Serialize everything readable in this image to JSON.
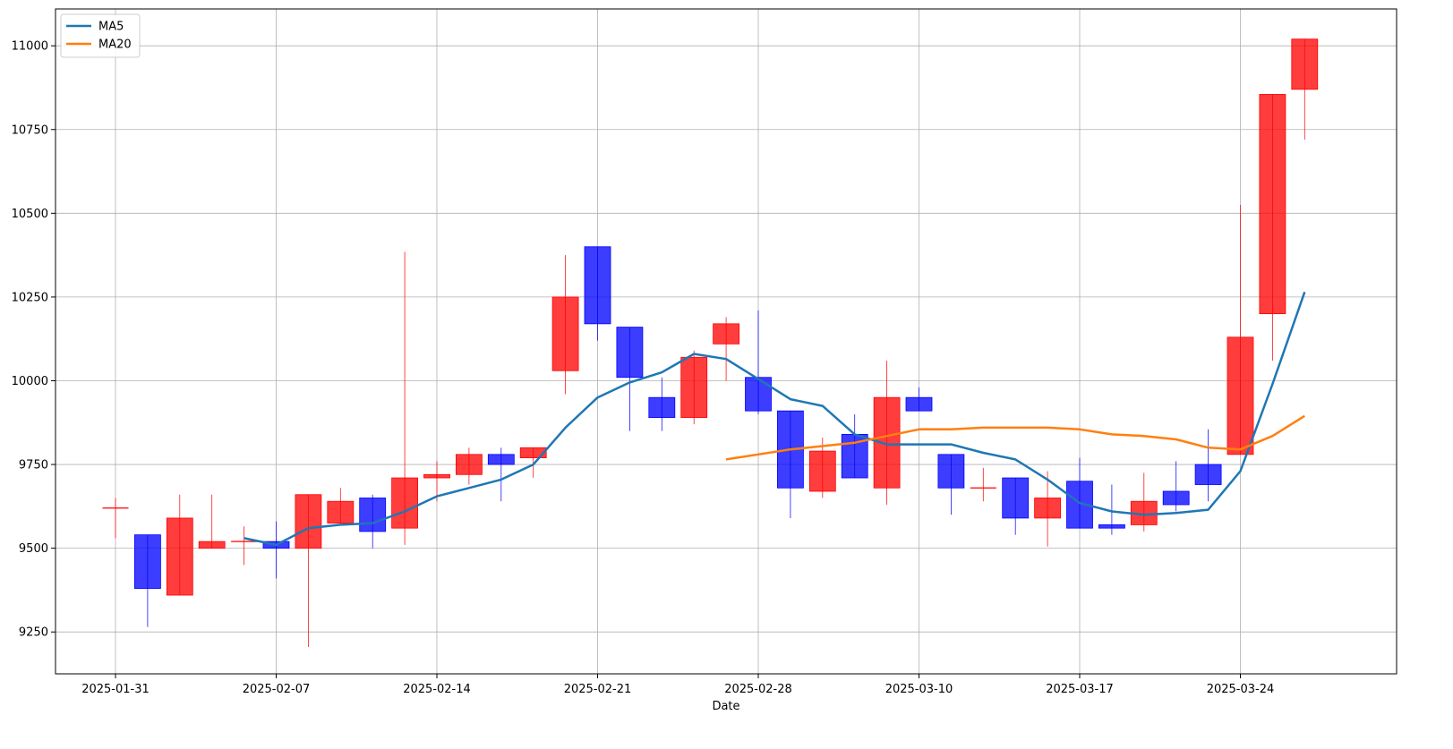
{
  "chart_data": {
    "type": "candlestick",
    "xlabel": "Date",
    "ylabel": "",
    "ylim": [
      9125,
      11110
    ],
    "yticks": [
      9250,
      9500,
      9750,
      10000,
      10250,
      10500,
      10750,
      11000
    ],
    "xticks": [
      "2025-01-31",
      "2025-02-07",
      "2025-02-14",
      "2025-02-21",
      "2025-02-28",
      "2025-03-10",
      "2025-03-17",
      "2025-03-24"
    ],
    "xtick_index": [
      0,
      5,
      10,
      15,
      20,
      25,
      30,
      35
    ],
    "grid": true,
    "legend_position": "top-left",
    "colors": {
      "up": "#ff0000",
      "down": "#0000ff",
      "ma5": "#1f77b4",
      "ma20": "#ff7f0e"
    },
    "candles": [
      {
        "o": 9620,
        "h": 9650,
        "l": 9530,
        "c": 9620
      },
      {
        "o": 9540,
        "h": 9540,
        "l": 9265,
        "c": 9380
      },
      {
        "o": 9360,
        "h": 9660,
        "l": 9360,
        "c": 9590
      },
      {
        "o": 9500,
        "h": 9660,
        "l": 9500,
        "c": 9520
      },
      {
        "o": 9520,
        "h": 9565,
        "l": 9450,
        "c": 9520
      },
      {
        "o": 9520,
        "h": 9580,
        "l": 9410,
        "c": 9500
      },
      {
        "o": 9500,
        "h": 9660,
        "l": 9205,
        "c": 9660
      },
      {
        "o": 9575,
        "h": 9680,
        "l": 9575,
        "c": 9640
      },
      {
        "o": 9650,
        "h": 9660,
        "l": 9500,
        "c": 9550
      },
      {
        "o": 9560,
        "h": 10385,
        "l": 9510,
        "c": 9710
      },
      {
        "o": 9710,
        "h": 9760,
        "l": 9640,
        "c": 9720
      },
      {
        "o": 9720,
        "h": 9800,
        "l": 9690,
        "c": 9780
      },
      {
        "o": 9780,
        "h": 9800,
        "l": 9640,
        "c": 9750
      },
      {
        "o": 9770,
        "h": 9800,
        "l": 9710,
        "c": 9800
      },
      {
        "o": 10030,
        "h": 10375,
        "l": 9960,
        "c": 10250
      },
      {
        "o": 10400,
        "h": 10400,
        "l": 10120,
        "c": 10170
      },
      {
        "o": 10160,
        "h": 10160,
        "l": 9850,
        "c": 10010
      },
      {
        "o": 9950,
        "h": 10010,
        "l": 9850,
        "c": 9890
      },
      {
        "o": 9890,
        "h": 10090,
        "l": 9870,
        "c": 10070
      },
      {
        "o": 10110,
        "h": 10190,
        "l": 10000,
        "c": 10170
      },
      {
        "o": 10010,
        "h": 10210,
        "l": 9900,
        "c": 9910
      },
      {
        "o": 9910,
        "h": 9910,
        "l": 9590,
        "c": 9680
      },
      {
        "o": 9670,
        "h": 9830,
        "l": 9650,
        "c": 9790
      },
      {
        "o": 9840,
        "h": 9900,
        "l": 9710,
        "c": 9710
      },
      {
        "o": 9680,
        "h": 10060,
        "l": 9630,
        "c": 9950
      },
      {
        "o": 9950,
        "h": 9980,
        "l": 9910,
        "c": 9910
      },
      {
        "o": 9780,
        "h": 9780,
        "l": 9600,
        "c": 9680
      },
      {
        "o": 9680,
        "h": 9740,
        "l": 9640,
        "c": 9680
      },
      {
        "o": 9710,
        "h": 9710,
        "l": 9540,
        "c": 9590
      },
      {
        "o": 9590,
        "h": 9730,
        "l": 9505,
        "c": 9650
      },
      {
        "o": 9700,
        "h": 9770,
        "l": 9560,
        "c": 9560
      },
      {
        "o": 9570,
        "h": 9690,
        "l": 9540,
        "c": 9560
      },
      {
        "o": 9570,
        "h": 9725,
        "l": 9550,
        "c": 9640
      },
      {
        "o": 9670,
        "h": 9760,
        "l": 9610,
        "c": 9630
      },
      {
        "o": 9750,
        "h": 9855,
        "l": 9640,
        "c": 9690
      },
      {
        "o": 9780,
        "h": 10525,
        "l": 9780,
        "c": 10130
      },
      {
        "o": 10200,
        "h": 10855,
        "l": 10060,
        "c": 10855
      },
      {
        "o": 10870,
        "h": 11020,
        "l": 10720,
        "c": 11020
      }
    ],
    "series": [
      {
        "name": "MA5",
        "start_index": 4,
        "values": [
          9530,
          9510,
          9560,
          9570,
          9575,
          9610,
          9655,
          9680,
          9705,
          9750,
          9860,
          9950,
          9995,
          10025,
          10080,
          10065,
          10005,
          9945,
          9925,
          9840,
          9810,
          9810,
          9810,
          9785,
          9765,
          9705,
          9635,
          9610,
          9600,
          9605,
          9615,
          9730,
          9990,
          10265
        ]
      },
      {
        "name": "MA20",
        "start_index": 19,
        "values": [
          9765,
          9780,
          9795,
          9805,
          9815,
          9835,
          9855,
          9855,
          9860,
          9860,
          9860,
          9855,
          9840,
          9835,
          9825,
          9800,
          9795,
          9835,
          9895
        ]
      }
    ]
  }
}
